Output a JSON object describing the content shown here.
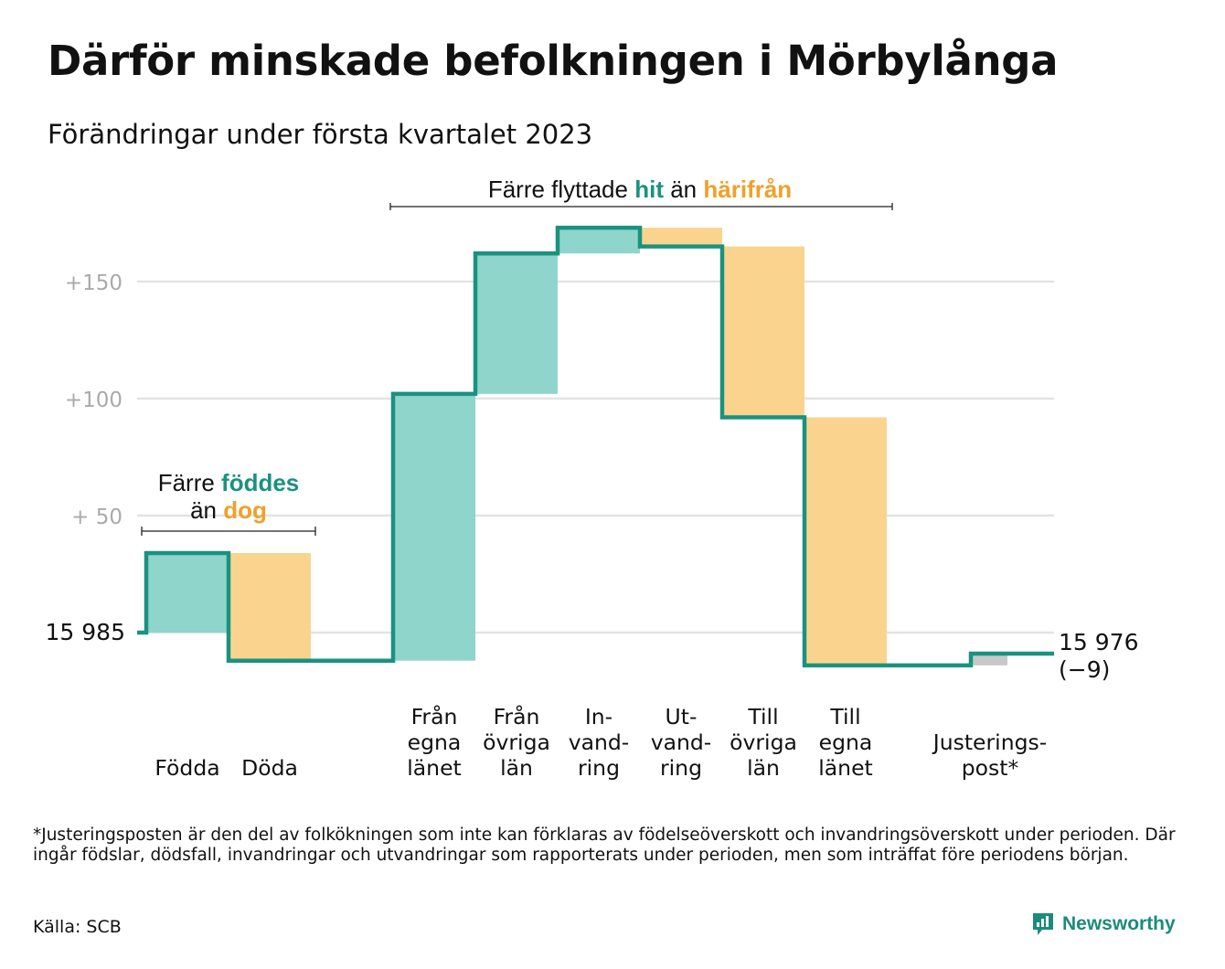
{
  "title": "Därför minskade befolkningen i Mörbylånga",
  "subtitle": "Förändringar under första kvartalet 2023",
  "footnote": "*Justeringsposten är den del av folkökningen som inte kan förklaras av födelseöverskott och invandringsöverskott under perioden. Där ingår födslar, dödsfall, invandringar och utvandringar som rapporterats under perioden, men som inträffat före periodens början.",
  "source": "Källa: SCB",
  "brand": "Newsworthy",
  "colors": {
    "increase": "#8fd5cc",
    "decrease": "#fad48e",
    "adjustment": "#c8c8c8",
    "line": "#1a9280",
    "teal_text": "#1a9280",
    "orange_text": "#f0a02a",
    "grid": "#e3e3e3",
    "axis_text": "#aaaaaa"
  },
  "chart_data": {
    "type": "waterfall",
    "start_label": "15 985",
    "end_label": "15 976",
    "end_change_label": "(−9)",
    "y_ticks": [
      {
        "value": 50,
        "label": "+ 50"
      },
      {
        "value": 100,
        "label": "+100"
      },
      {
        "value": 150,
        "label": "+150"
      }
    ],
    "ylim": [
      -25,
      180
    ],
    "steps": [
      {
        "label": [
          "Födda"
        ],
        "from": 0,
        "to": 34,
        "kind": "increase"
      },
      {
        "label": [
          "Döda"
        ],
        "from": 34,
        "to": -12,
        "kind": "decrease"
      },
      {
        "label": [
          "Från",
          "egna",
          "länet"
        ],
        "from": -12,
        "to": 102,
        "kind": "increase"
      },
      {
        "label": [
          "Från",
          "övriga",
          "län"
        ],
        "from": 102,
        "to": 162,
        "kind": "increase"
      },
      {
        "label": [
          "In-",
          "vand-",
          "ring"
        ],
        "from": 162,
        "to": 173,
        "kind": "increase"
      },
      {
        "label": [
          "Ut-",
          "vand-",
          "ring"
        ],
        "from": 173,
        "to": 165,
        "kind": "decrease"
      },
      {
        "label": [
          "Till",
          "övriga",
          "län"
        ],
        "from": 165,
        "to": 92,
        "kind": "decrease"
      },
      {
        "label": [
          "Till",
          "egna",
          "länet"
        ],
        "from": 92,
        "to": -14,
        "kind": "decrease"
      },
      {
        "label": [
          "Justerings-",
          "post*"
        ],
        "from": -14,
        "to": -9,
        "kind": "adjustment"
      }
    ],
    "annotations": [
      {
        "id": "births",
        "line1": [
          {
            "text": "Färre ",
            "style": "plain"
          },
          {
            "text": "föddes",
            "style": "teal"
          }
        ],
        "line2": [
          {
            "text": "än ",
            "style": "plain"
          },
          {
            "text": "dog",
            "style": "orange"
          }
        ]
      },
      {
        "id": "migration",
        "line1": [
          {
            "text": "Färre flyttade ",
            "style": "plain"
          },
          {
            "text": "hit",
            "style": "teal"
          },
          {
            "text": " än ",
            "style": "plain"
          },
          {
            "text": "härifrån",
            "style": "orange"
          }
        ]
      }
    ]
  }
}
